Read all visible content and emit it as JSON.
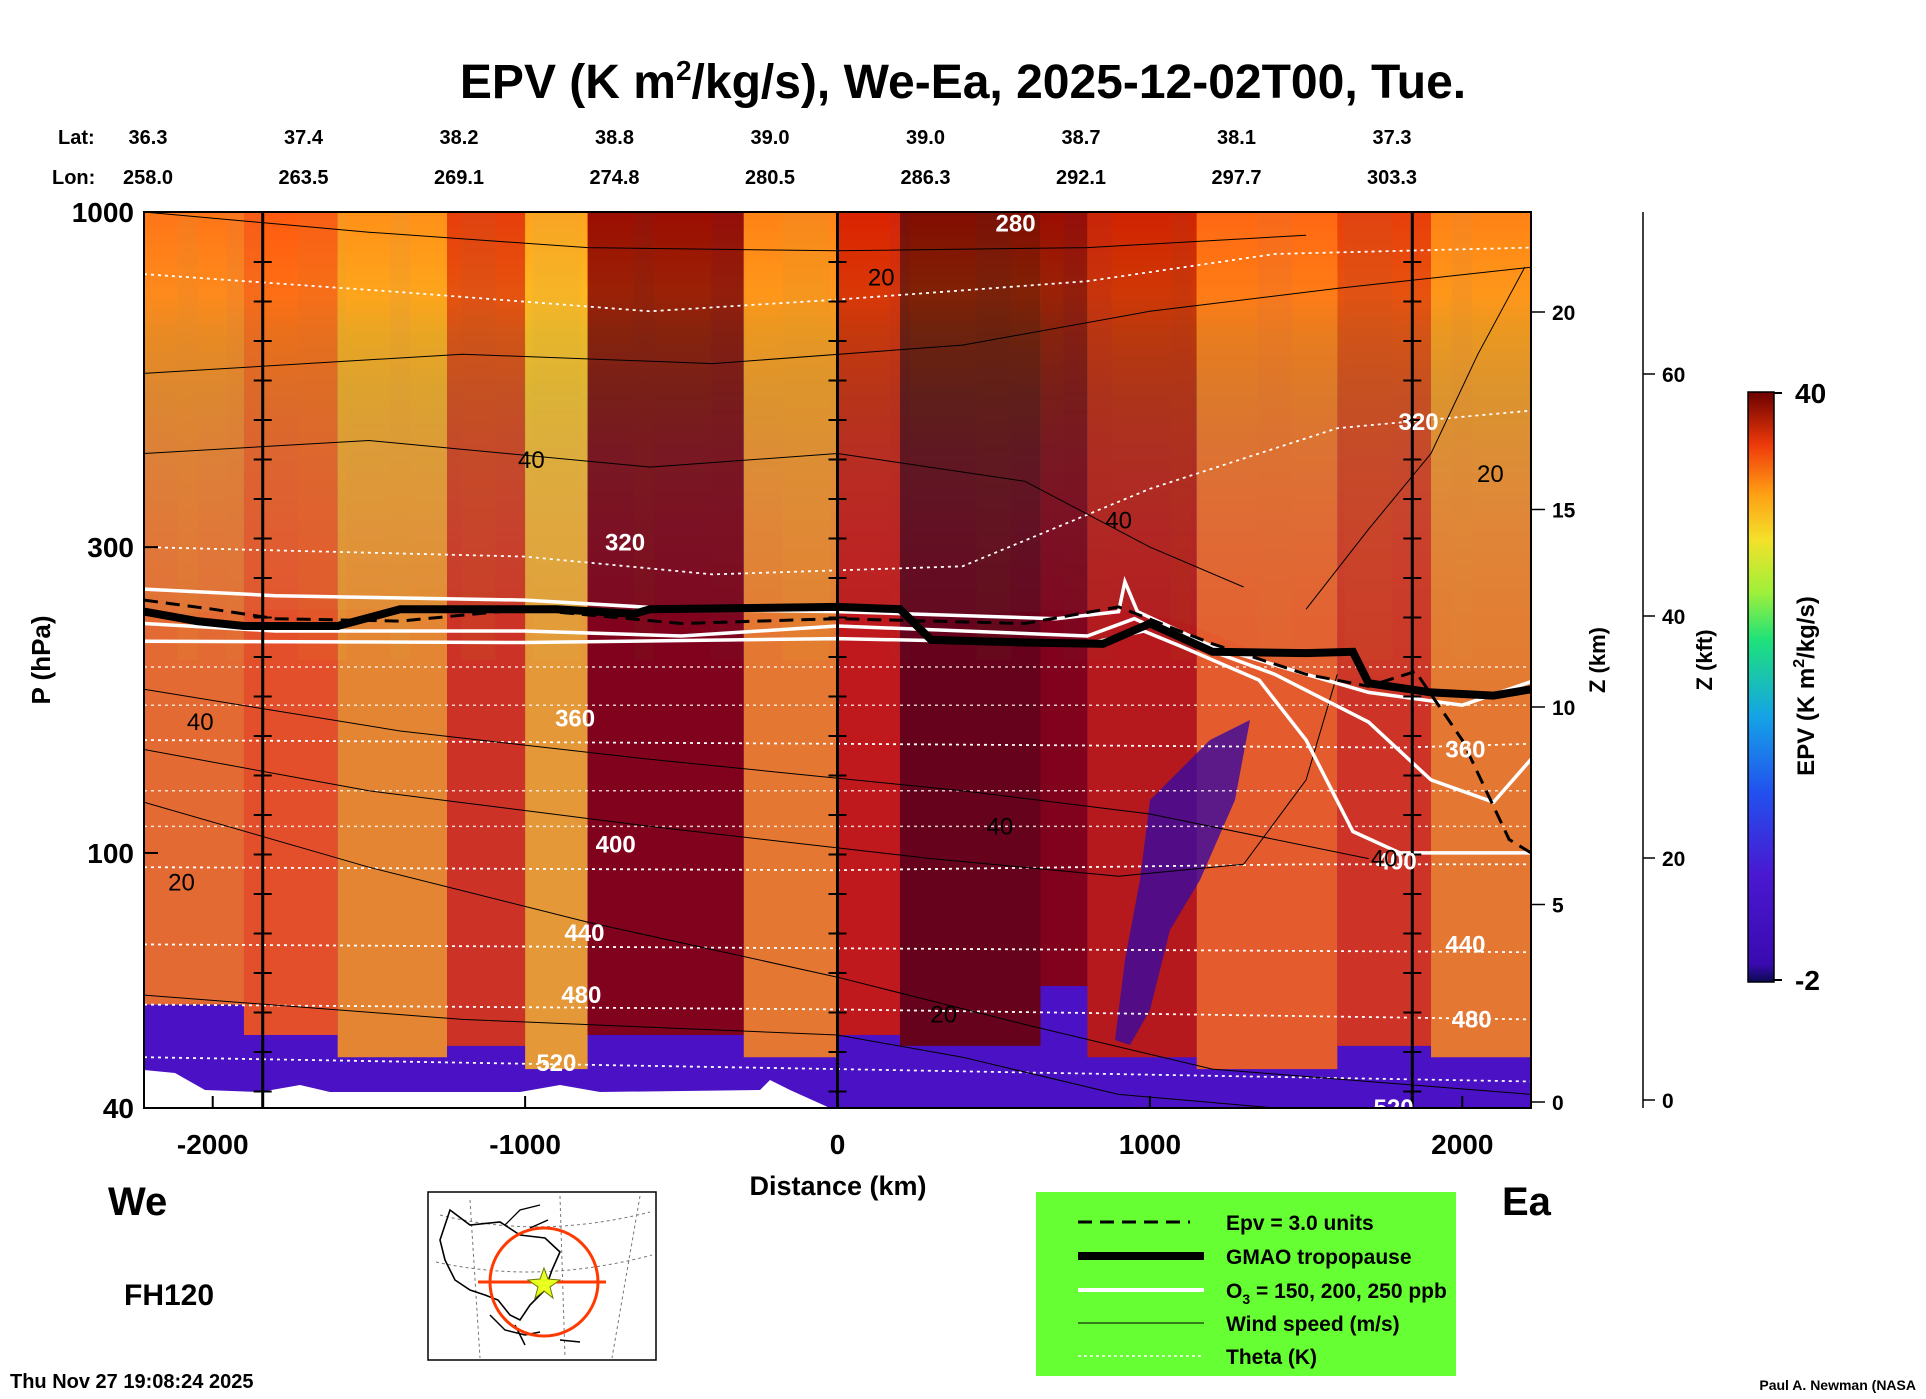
{
  "chart_data": {
    "type": "heatmap",
    "title_main": "EPV (K m",
    "title_sup": "2",
    "title_rest": "/kg/s), We-Ea, 2025-12-02T00, Tue.",
    "lat_label": "Lat:",
    "lon_label": "Lon:",
    "lat": [
      "36.3",
      "37.4",
      "38.2",
      "38.8",
      "39.0",
      "39.0",
      "38.7",
      "38.1",
      "37.3"
    ],
    "lon": [
      "258.0",
      "263.5",
      "269.1",
      "274.8",
      "280.5",
      "286.3",
      "292.1",
      "297.7",
      "303.3"
    ],
    "xlabel": "Distance (km)",
    "xlim": [
      -2220,
      2220
    ],
    "xticks": [
      -2000,
      -1000,
      0,
      1000,
      2000
    ],
    "xtick_labels": [
      "-2000",
      "-1000",
      "0",
      "1000",
      "2000"
    ],
    "ylabel": "P (hPa)",
    "ylim": [
      1000,
      40
    ],
    "yticks": [
      40,
      100,
      300,
      1000
    ],
    "ytick_labels": [
      "40",
      "100",
      "300",
      "1000"
    ],
    "z_km_label": "Z (km)",
    "z_km_ticks": [
      0,
      5,
      10,
      15,
      20
    ],
    "z_km_tick_labels": [
      "0",
      "5",
      "10",
      "15",
      "20"
    ],
    "z_kft_label": "Z (kft)",
    "z_kft_ticks": [
      0,
      20,
      40,
      60
    ],
    "z_kft_tick_labels": [
      "0",
      "20",
      "40",
      "60"
    ],
    "colorbar_label": "EPV (K m",
    "colorbar_sup": "2",
    "colorbar_rest": "/kg/s)",
    "colorbar_min": "-2",
    "colorbar_max": "40",
    "vertical_lines_km": [
      -1840,
      0,
      1840
    ],
    "theta_levels": [
      {
        "theta": 520,
        "p": 48
      },
      {
        "theta": 480,
        "p": 58
      },
      {
        "theta": 440,
        "p": 72
      },
      {
        "theta": 400,
        "p": 95
      },
      {
        "theta": 360,
        "p": 150
      },
      {
        "theta": 320,
        "p": 290
      },
      {
        "theta": 280,
        "p": 800
      }
    ],
    "contour_labels": [
      {
        "text": "520",
        "x": -900,
        "p": 47,
        "color": "white"
      },
      {
        "text": "520",
        "x": 1780,
        "p": 40,
        "color": "white"
      },
      {
        "text": "480",
        "x": -820,
        "p": 60,
        "color": "white"
      },
      {
        "text": "480",
        "x": 2030,
        "p": 55,
        "color": "white"
      },
      {
        "text": "440",
        "x": -810,
        "p": 75,
        "color": "white"
      },
      {
        "text": "440",
        "x": 2010,
        "p": 72,
        "color": "white"
      },
      {
        "text": "400",
        "x": -710,
        "p": 103,
        "color": "white"
      },
      {
        "text": "400",
        "x": 1790,
        "p": 97,
        "color": "white"
      },
      {
        "text": "360",
        "x": -840,
        "p": 162,
        "color": "white"
      },
      {
        "text": "360",
        "x": 2010,
        "p": 145,
        "color": "white"
      },
      {
        "text": "320",
        "x": -680,
        "p": 305,
        "color": "white"
      },
      {
        "text": "320",
        "x": 1860,
        "p": 470,
        "color": "white"
      },
      {
        "text": "280",
        "x": 570,
        "p": 960,
        "color": "white"
      },
      {
        "text": "20",
        "x": -2100,
        "p": 90,
        "color": "black"
      },
      {
        "text": "20",
        "x": 340,
        "p": 56,
        "color": "black"
      },
      {
        "text": "20",
        "x": 140,
        "p": 790,
        "color": "black"
      },
      {
        "text": "20",
        "x": 2090,
        "p": 390,
        "color": "black"
      },
      {
        "text": "40",
        "x": -2040,
        "p": 160,
        "color": "black"
      },
      {
        "text": "40",
        "x": 520,
        "p": 110,
        "color": "black"
      },
      {
        "text": "40",
        "x": 1750,
        "p": 98,
        "color": "black"
      },
      {
        "text": "40",
        "x": -980,
        "p": 410,
        "color": "black"
      },
      {
        "text": "40",
        "x": 900,
        "p": 330,
        "color": "black"
      }
    ],
    "tropopause_p": 235,
    "side_labels": {
      "west": "We",
      "east": "Ea",
      "forecast_hour": "FH120"
    }
  },
  "legend": {
    "items": [
      {
        "label": "Epv = 3.0 units"
      },
      {
        "label": "GMAO tropopause"
      },
      {
        "label": "O",
        "sub": "3",
        "rest": " = 150, 200, 250 ppb"
      },
      {
        "label": "Wind speed (m/s)"
      },
      {
        "label": "Theta (K)"
      }
    ]
  },
  "footer": {
    "timestamp": "Thu Nov 27 19:08:24 2025",
    "credit": "Paul A. Newman (NASA"
  },
  "colors": {
    "legend_bg": "#66ff33",
    "troposphere": "#4a0fc4"
  }
}
